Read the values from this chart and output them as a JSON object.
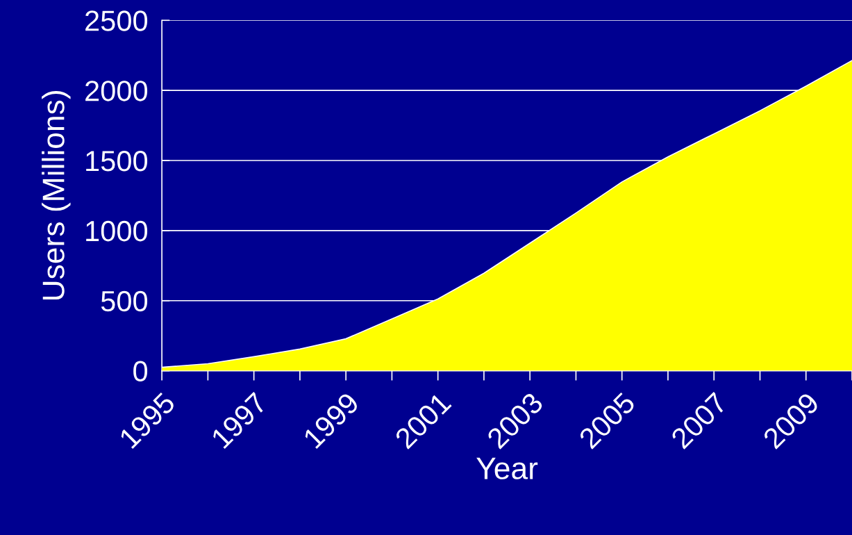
{
  "chart_data": {
    "type": "area",
    "xlabel": "Year",
    "ylabel": "Users (Millions)",
    "x": [
      1995,
      1996,
      1997,
      1998,
      1999,
      2000,
      2001,
      2002,
      2003,
      2004,
      2005,
      2006,
      2007,
      2008,
      2009,
      2010
    ],
    "series": [
      {
        "color": "#ffff00",
        "values": [
          25,
          50,
          100,
          155,
          228,
          370,
          512,
          696,
          910,
          1125,
          1347,
          1526,
          1690,
          1855,
          2030,
          2213
        ]
      }
    ],
    "xlim": [
      1995,
      2010
    ],
    "xticks": [
      1995,
      {
        "value": 1996,
        "label": null
      },
      1997,
      {
        "value": 1998,
        "label": null
      },
      1999,
      {
        "value": 2000,
        "label": null
      },
      2001,
      {
        "value": 2002,
        "label": null
      },
      2003,
      {
        "value": 2004,
        "label": null
      },
      2005,
      {
        "value": 2006,
        "label": null
      },
      2007,
      {
        "value": 2008,
        "label": null
      },
      2009,
      {
        "value": 2010,
        "label": null
      }
    ],
    "ylim": [
      0,
      2500
    ],
    "yticks": [
      0,
      500,
      1000,
      1500,
      2000,
      2500
    ],
    "grid": "y",
    "legend": false
  }
}
